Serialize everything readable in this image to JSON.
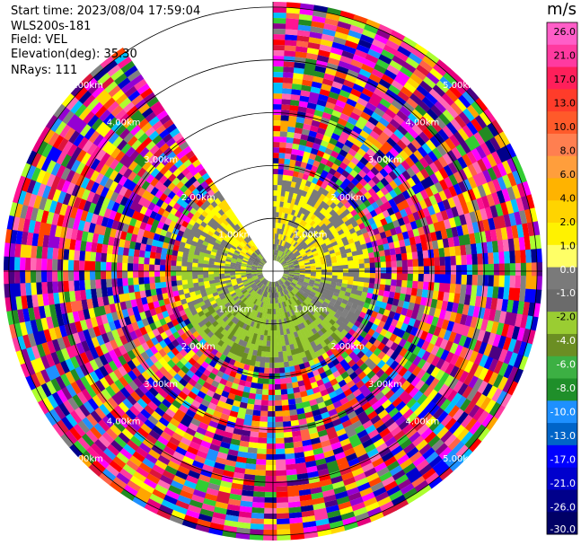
{
  "info": {
    "start_time": "Start time: 2023/08/04 17:59:04",
    "instrument": "WLS200s-181",
    "field": "Field: VEL",
    "elevation": "Elevation(deg): 35.30",
    "nrays": "NRays: 111"
  },
  "chart_data": {
    "type": "heatmap",
    "projection": "polar PPI",
    "field": "VEL",
    "units": "m/s",
    "elevation_deg": 35.3,
    "n_rays": 111,
    "range_rings_km": [
      1.0,
      2.0,
      3.0,
      4.0,
      5.0
    ],
    "ring_labels": [
      "1.00km",
      "2.00km",
      "3.00km",
      "4.00km",
      "5.00km"
    ],
    "max_range_km": 5.1,
    "missing_sector_deg": [
      326,
      360
    ],
    "colorbar": {
      "title": "m/s",
      "ticks": [
        "26.0",
        "21.0",
        "17.0",
        "13.0",
        "10.0",
        "8.0",
        "6.0",
        "4.0",
        "2.0",
        "1.0",
        "0.0",
        "-1.0",
        "-2.0",
        "-4.0",
        "-6.0",
        "-8.0",
        "-10.0",
        "-13.0",
        "-17.0",
        "-21.0",
        "-26.0",
        "-30.0"
      ],
      "colors": [
        "#ff5ec8",
        "#ff3aa0",
        "#ff1f5a",
        "#ff3c2a",
        "#ff5a2a",
        "#ff7f50",
        "#ff9e3c",
        "#ffb300",
        "#ffd400",
        "#fff200",
        "#ffff66",
        "#7a7a7a",
        "#6b6b6b",
        "#9acd32",
        "#6b8e23",
        "#3cb043",
        "#1f8f2a",
        "#1e90ff",
        "#0064c8",
        "#0000ff",
        "#0000cd",
        "#00008b",
        "#000066"
      ]
    },
    "inner_zone": {
      "radius_km": 1.85,
      "dominant": {
        "east_north": "2.0",
        "west": "4.0",
        "south": "-2.0",
        "center": "0.0"
      }
    }
  }
}
